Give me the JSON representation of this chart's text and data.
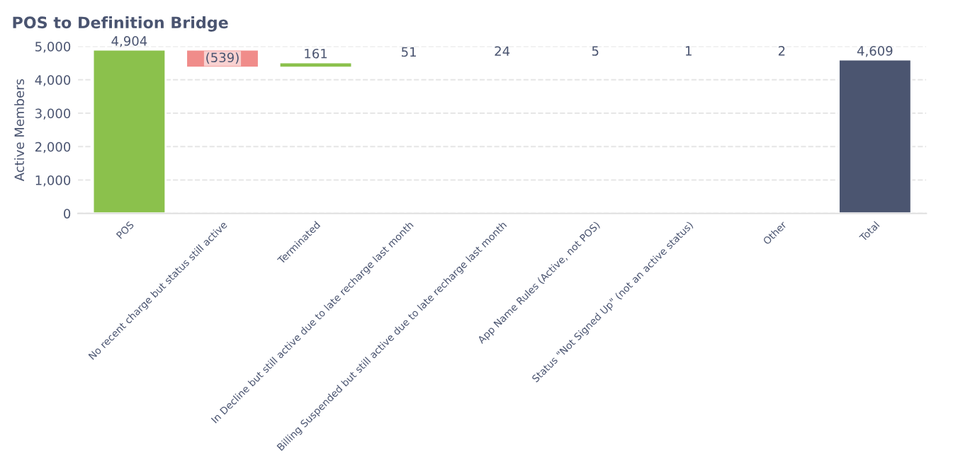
{
  "chart_data": {
    "type": "bar",
    "title": "POS to Definition Bridge",
    "ylabel": "Active Members",
    "categories": [
      "POS",
      "No recent charge but status still active",
      "Terminated",
      "In Decline but still active due to late recharge last month",
      "Billing Suspended but still active due to late recharge last month",
      "App Name Rules (Active, not POS)",
      "Status \"Not Signed Up\" (not an active status)",
      "Other",
      "Total"
    ],
    "values": [
      4904,
      -539,
      161,
      51,
      24,
      5,
      1,
      2,
      4609
    ],
    "base": [
      0,
      4904,
      4365,
      4526,
      4577,
      4601,
      4606,
      4607,
      0
    ],
    "value_labels": [
      "4,904",
      "(539)",
      "161",
      "51",
      "24",
      "5",
      "1",
      "2",
      "4,609"
    ],
    "colors": [
      "#8bc14c",
      "#f08c8a",
      "#8bc14c",
      "#9fcf6a",
      "#b9df92",
      "#e3efd4",
      "#f3f7ee",
      "#eef0ec",
      "#4b5570"
    ],
    "ylim": [
      0,
      5000
    ],
    "yticks": [
      {
        "value": 0,
        "label": "0"
      },
      {
        "value": 1000,
        "label": "1,000"
      },
      {
        "value": 2000,
        "label": "2,000"
      },
      {
        "value": 3000,
        "label": "3,000"
      },
      {
        "value": 4000,
        "label": "4,000"
      },
      {
        "value": 5000,
        "label": "5,000"
      }
    ],
    "grid": "y"
  }
}
